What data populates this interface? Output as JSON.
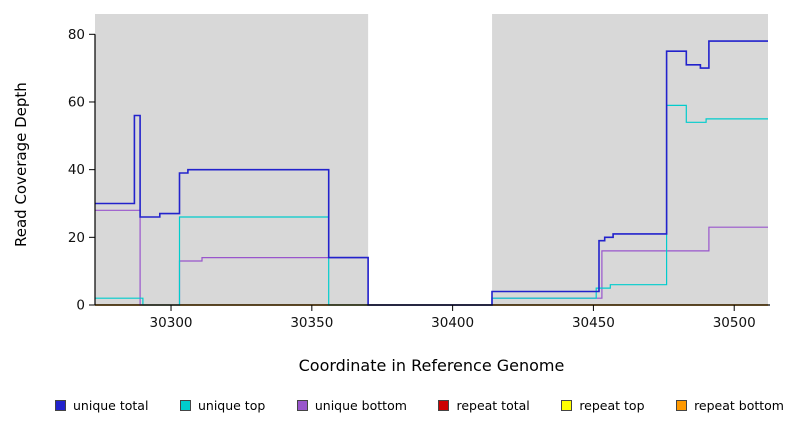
{
  "figure": {
    "xlabel": "Coordinate in Reference Genome",
    "ylabel": "Read Coverage Depth"
  },
  "chart_data": {
    "type": "line",
    "step": true,
    "title": "",
    "xlabel": "Coordinate in Reference Genome",
    "ylabel": "Read Coverage Depth",
    "xlim": [
      30273,
      30512
    ],
    "ylim": [
      0,
      86
    ],
    "x_ticks": [
      30300,
      30350,
      30400,
      30450,
      30500
    ],
    "y_ticks": [
      0,
      20,
      40,
      60,
      80
    ],
    "grid": false,
    "legend_position": "bottom",
    "shade_color": "#d8d8d8",
    "background_shaded_regions": [
      [
        30273,
        30370
      ],
      [
        30414,
        30512
      ]
    ],
    "series": [
      {
        "name": "repeat total",
        "color": "#cc0000",
        "width": 1.2,
        "points": [
          [
            30273,
            0
          ]
        ]
      },
      {
        "name": "repeat top",
        "color": "#ffff00",
        "width": 1.2,
        "points": [
          [
            30273,
            0
          ]
        ]
      },
      {
        "name": "repeat bottom",
        "color": "#ff9900",
        "width": 1.2,
        "points": [
          [
            30273,
            0
          ]
        ]
      },
      {
        "name": "unique bottom",
        "color": "#9955cc",
        "width": 1.2,
        "points": [
          [
            30273,
            28
          ],
          [
            30289,
            0
          ],
          [
            30303,
            13
          ],
          [
            30311,
            14
          ],
          [
            30356,
            14
          ],
          [
            30370,
            0
          ],
          [
            30414,
            2
          ],
          [
            30453,
            16
          ],
          [
            30491,
            23
          ]
        ]
      },
      {
        "name": "unique top",
        "color": "#00cccc",
        "width": 1.2,
        "points": [
          [
            30273,
            2
          ],
          [
            30290,
            0
          ],
          [
            30303,
            26
          ],
          [
            30356,
            0
          ],
          [
            30414,
            2
          ],
          [
            30451,
            5
          ],
          [
            30456,
            6
          ],
          [
            30476,
            59
          ],
          [
            30483,
            54
          ],
          [
            30490,
            55
          ]
        ]
      },
      {
        "name": "unique total",
        "color": "#2222cc",
        "width": 1.6,
        "points": [
          [
            30273,
            30
          ],
          [
            30287,
            56
          ],
          [
            30289,
            26
          ],
          [
            30296,
            27
          ],
          [
            30303,
            39
          ],
          [
            30306,
            40
          ],
          [
            30356,
            14
          ],
          [
            30370,
            0
          ],
          [
            30414,
            4
          ],
          [
            30452,
            19
          ],
          [
            30454,
            20
          ],
          [
            30457,
            21
          ],
          [
            30476,
            75
          ],
          [
            30483,
            71
          ],
          [
            30488,
            70
          ],
          [
            30491,
            78
          ]
        ]
      }
    ],
    "legend_order": [
      "unique total",
      "unique top",
      "unique bottom",
      "repeat total",
      "repeat top",
      "repeat bottom"
    ]
  }
}
